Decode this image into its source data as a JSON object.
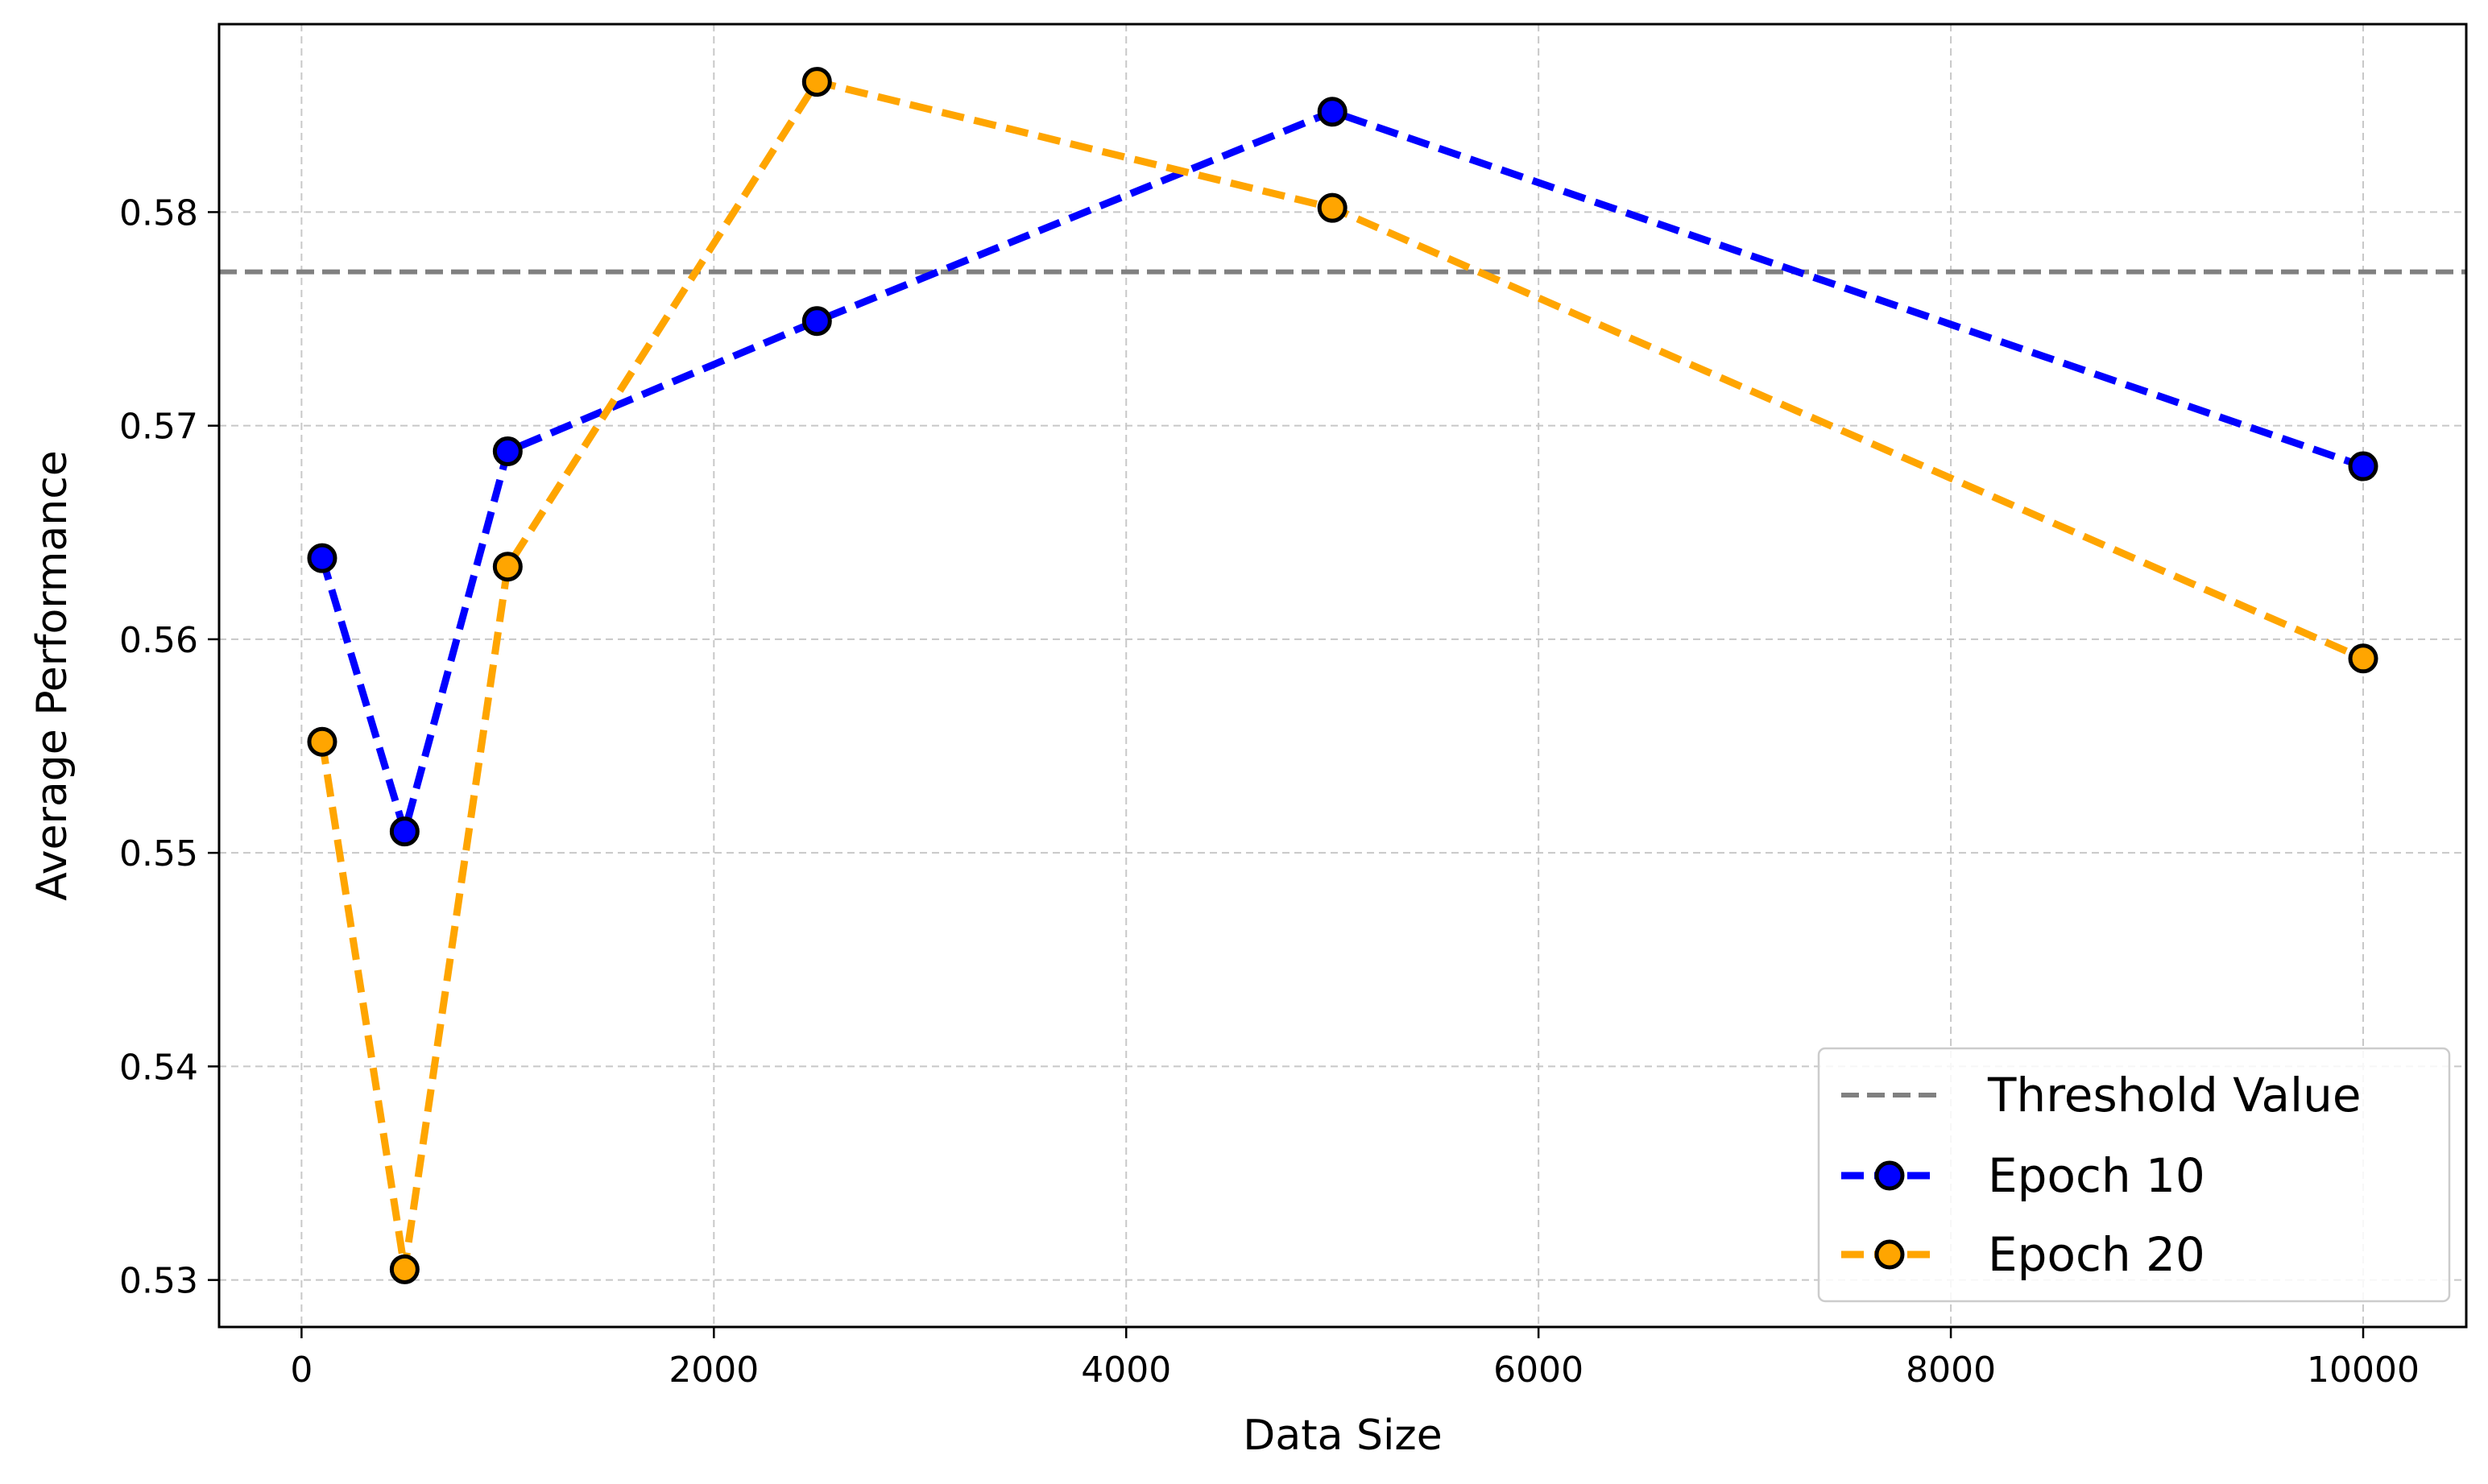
{
  "chart_data": {
    "type": "line",
    "title": "",
    "xlabel": "Data Size",
    "ylabel": "Average Performance",
    "xlim": [
      -400,
      10500
    ],
    "ylim": [
      0.5278,
      0.5888
    ],
    "x_ticks": [
      0,
      2000,
      4000,
      6000,
      8000,
      10000
    ],
    "x_tick_labels": [
      "0",
      "2000",
      "4000",
      "6000",
      "8000",
      "10000"
    ],
    "y_ticks": [
      0.53,
      0.54,
      0.55,
      0.56,
      0.57,
      0.58
    ],
    "y_tick_labels": [
      "0.53",
      "0.54",
      "0.55",
      "0.56",
      "0.57",
      "0.58"
    ],
    "grid": true,
    "legend_position": "bottom-right",
    "threshold": {
      "name": "Threshold Value",
      "value": 0.5772,
      "color": "#808080",
      "style": "dashed"
    },
    "x": [
      100,
      500,
      1000,
      2500,
      5000,
      10000
    ],
    "series": [
      {
        "name": "Epoch 10",
        "color": "#0000ff",
        "marker": "circle",
        "style": "dashed",
        "values": [
          0.5638,
          0.551,
          0.5688,
          0.5749,
          0.5847,
          0.5681
        ]
      },
      {
        "name": "Epoch 20",
        "color": "#ffa500",
        "marker": "circle",
        "style": "dashed",
        "values": [
          0.5552,
          0.5305,
          0.5634,
          0.5861,
          0.5802,
          0.5591
        ]
      }
    ]
  }
}
